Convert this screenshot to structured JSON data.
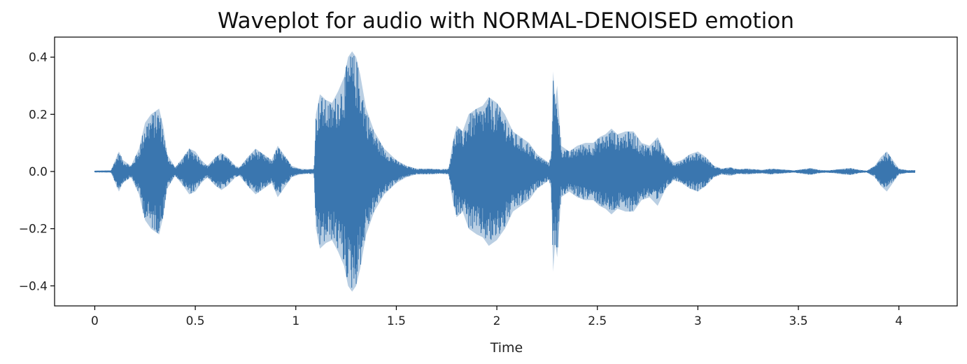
{
  "chart_data": {
    "type": "area",
    "title": "Waveplot for audio with NORMAL-DENOISED emotion",
    "xlabel": "Time",
    "ylabel": "",
    "xlim": [
      -0.2,
      4.29
    ],
    "ylim": [
      -0.47,
      0.47
    ],
    "x_ticks": [
      0,
      0.5,
      1,
      1.5,
      2,
      2.5,
      3,
      3.5,
      4
    ],
    "x_tick_labels": [
      "0",
      "0.5",
      "1",
      "1.5",
      "2",
      "2.5",
      "3",
      "3.5",
      "4"
    ],
    "y_ticks": [
      0.4,
      0.2,
      0.0,
      -0.2,
      -0.4
    ],
    "y_tick_labels": [
      "0.4",
      "0.2",
      "0.0",
      "−0.2",
      "−0.4"
    ],
    "grid": false,
    "legend": "none",
    "series": [
      {
        "color": "#3a76af",
        "time_s": [
          0.0,
          0.08,
          0.12,
          0.14,
          0.18,
          0.22,
          0.25,
          0.28,
          0.32,
          0.34,
          0.36,
          0.4,
          0.44,
          0.47,
          0.5,
          0.53,
          0.56,
          0.6,
          0.63,
          0.66,
          0.7,
          0.72,
          0.76,
          0.8,
          0.84,
          0.88,
          0.91,
          0.94,
          0.98,
          1.02,
          1.06,
          1.09,
          1.1,
          1.12,
          1.15,
          1.18,
          1.21,
          1.24,
          1.26,
          1.28,
          1.3,
          1.32,
          1.35,
          1.39,
          1.44,
          1.5,
          1.55,
          1.6,
          1.66,
          1.72,
          1.76,
          1.78,
          1.8,
          1.83,
          1.86,
          1.9,
          1.93,
          1.96,
          2.0,
          2.04,
          2.08,
          2.12,
          2.16,
          2.2,
          2.24,
          2.26,
          2.27,
          2.28,
          2.29,
          2.3,
          2.32,
          2.36,
          2.4,
          2.44,
          2.48,
          2.51,
          2.54,
          2.57,
          2.6,
          2.64,
          2.68,
          2.72,
          2.76,
          2.8,
          2.84,
          2.88,
          2.92,
          2.96,
          3.0,
          3.04,
          3.08,
          3.12,
          3.16,
          3.2,
          3.24,
          3.28,
          3.32,
          3.36,
          3.4,
          3.44,
          3.48,
          3.52,
          3.56,
          3.6,
          3.64,
          3.68,
          3.72,
          3.76,
          3.8,
          3.84,
          3.88,
          3.91,
          3.94,
          3.97,
          4.0,
          4.04,
          4.08
        ],
        "amplitude_envelope": [
          0.003,
          0.004,
          0.07,
          0.04,
          0.02,
          0.08,
          0.17,
          0.2,
          0.22,
          0.16,
          0.06,
          0.015,
          0.05,
          0.08,
          0.07,
          0.04,
          0.02,
          0.05,
          0.065,
          0.05,
          0.02,
          0.015,
          0.05,
          0.08,
          0.06,
          0.04,
          0.09,
          0.06,
          0.02,
          0.01,
          0.008,
          0.01,
          0.2,
          0.27,
          0.25,
          0.24,
          0.28,
          0.33,
          0.4,
          0.42,
          0.4,
          0.34,
          0.22,
          0.14,
          0.08,
          0.04,
          0.02,
          0.01,
          0.01,
          0.008,
          0.01,
          0.1,
          0.16,
          0.14,
          0.2,
          0.22,
          0.23,
          0.26,
          0.24,
          0.2,
          0.14,
          0.12,
          0.1,
          0.06,
          0.04,
          0.03,
          0.06,
          0.35,
          0.25,
          0.3,
          0.09,
          0.07,
          0.09,
          0.1,
          0.1,
          0.12,
          0.13,
          0.15,
          0.13,
          0.14,
          0.14,
          0.1,
          0.09,
          0.12,
          0.06,
          0.03,
          0.04,
          0.06,
          0.07,
          0.05,
          0.02,
          0.01,
          0.015,
          0.008,
          0.01,
          0.008,
          0.006,
          0.01,
          0.008,
          0.006,
          0.004,
          0.008,
          0.012,
          0.006,
          0.004,
          0.006,
          0.01,
          0.012,
          0.006,
          0.003,
          0.02,
          0.05,
          0.07,
          0.04,
          0.01,
          0.005,
          0.005
        ]
      }
    ]
  }
}
